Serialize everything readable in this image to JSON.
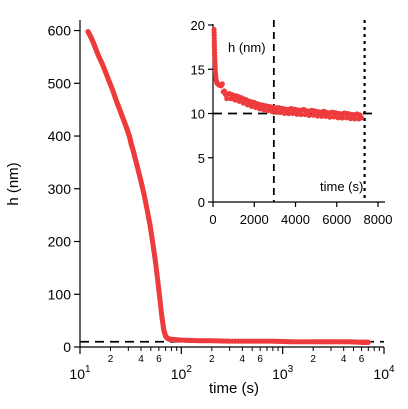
{
  "colors": {
    "data": "#ee3b3b",
    "axes": "#000000",
    "background": "#ffffff"
  },
  "chart_data": [
    {
      "type": "scatter",
      "title": "",
      "xlabel": "time (s)",
      "ylabel": "h (nm)",
      "x_scale": "log",
      "xlim": [
        10,
        10000
      ],
      "ylim": [
        0,
        620
      ],
      "y_ticks": [
        0,
        100,
        200,
        300,
        400,
        500,
        600
      ],
      "x_major_ticks": [
        10,
        100,
        1000,
        10000
      ],
      "x_major_tick_labels": [
        {
          "base": "10",
          "exp": "1"
        },
        {
          "base": "10",
          "exp": "2"
        },
        {
          "base": "10",
          "exp": "3"
        },
        {
          "base": "10",
          "exp": "4"
        }
      ],
      "x_minor_labels": [
        "2",
        "4",
        "6"
      ],
      "reference_line": {
        "y": 10,
        "style": "dashed"
      },
      "series": [
        {
          "points": [
            [
              12,
              598
            ],
            [
              13,
              585
            ],
            [
              14,
              570
            ],
            [
              15,
              555
            ],
            [
              17,
              532
            ],
            [
              19,
              508
            ],
            [
              21,
              487
            ],
            [
              23,
              465
            ],
            [
              25,
              447
            ],
            [
              27,
              430
            ],
            [
              29,
              414
            ],
            [
              31,
              397
            ],
            [
              32,
              385
            ],
            [
              33,
              377
            ],
            [
              35,
              358
            ],
            [
              37,
              340
            ],
            [
              40,
              314
            ],
            [
              43,
              288
            ],
            [
              46,
              260
            ],
            [
              49,
              232
            ],
            [
              52,
              200
            ],
            [
              55,
              168
            ],
            [
              58,
              132
            ],
            [
              61,
              96
            ],
            [
              64,
              60
            ],
            [
              67,
              33
            ],
            [
              70,
              20
            ],
            [
              75,
              15
            ],
            [
              85,
              14
            ],
            [
              100,
              13
            ],
            [
              150,
              12
            ],
            [
              200,
              12
            ],
            [
              300,
              11
            ],
            [
              500,
              11
            ],
            [
              800,
              11
            ],
            [
              1200,
              10
            ],
            [
              2000,
              10
            ],
            [
              3000,
              10
            ],
            [
              4500,
              10
            ],
            [
              6000,
              9
            ],
            [
              7000,
              9
            ]
          ]
        }
      ]
    },
    {
      "type": "scatter",
      "title": "",
      "xlabel": "time (s)",
      "ylabel": "h (nm)",
      "xlim": [
        0,
        8000
      ],
      "ylim": [
        0,
        20
      ],
      "x_ticks": [
        0,
        2000,
        4000,
        6000,
        8000
      ],
      "y_ticks": [
        0,
        5,
        10,
        15,
        20
      ],
      "reference_line": {
        "y": 10,
        "style": "dashed"
      },
      "vertical_lines": [
        {
          "x": 2950,
          "style": "dashed"
        },
        {
          "x": 7350,
          "style": "dotted"
        }
      ],
      "series": [
        {
          "points": [
            [
              50,
              19.5
            ],
            [
              60,
              18.5
            ],
            [
              70,
              17.5
            ],
            [
              80,
              16.5
            ],
            [
              100,
              15.5
            ],
            [
              120,
              14.5
            ],
            [
              150,
              13.8
            ],
            [
              200,
              13.4
            ],
            [
              300,
              13.2
            ],
            [
              450,
              13.1
            ],
            [
              600,
              11.9
            ],
            [
              800,
              12.0
            ],
            [
              1000,
              11.8
            ],
            [
              1200,
              11.7
            ],
            [
              1400,
              11.5
            ],
            [
              1600,
              11.3
            ],
            [
              1800,
              11.1
            ],
            [
              2000,
              11.0
            ],
            [
              2200,
              10.8
            ],
            [
              2400,
              10.7
            ],
            [
              2600,
              10.6
            ],
            [
              2800,
              10.5
            ],
            [
              3000,
              10.4
            ],
            [
              3200,
              10.4
            ],
            [
              3400,
              10.3
            ],
            [
              3600,
              10.2
            ],
            [
              3800,
              10.3
            ],
            [
              4000,
              10.2
            ],
            [
              4200,
              10.1
            ],
            [
              4400,
              10.2
            ],
            [
              4600,
              10.0
            ],
            [
              4800,
              10.1
            ],
            [
              5000,
              10.0
            ],
            [
              5200,
              9.9
            ],
            [
              5400,
              10.0
            ],
            [
              5600,
              9.8
            ],
            [
              5800,
              9.9
            ],
            [
              6000,
              9.8
            ],
            [
              6200,
              9.7
            ],
            [
              6400,
              9.8
            ],
            [
              6600,
              9.7
            ],
            [
              6800,
              9.6
            ],
            [
              7000,
              9.7
            ],
            [
              7200,
              9.5
            ]
          ]
        }
      ]
    }
  ]
}
